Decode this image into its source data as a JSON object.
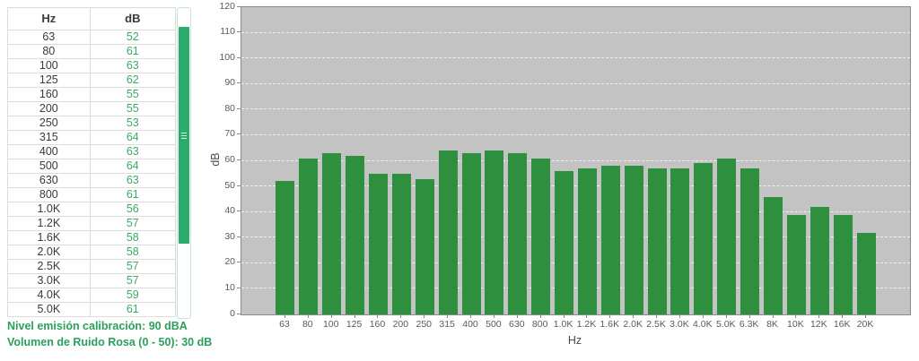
{
  "table": {
    "columns": [
      "Hz",
      "dB"
    ],
    "rows": [
      [
        "63",
        52
      ],
      [
        "80",
        61
      ],
      [
        "100",
        63
      ],
      [
        "125",
        62
      ],
      [
        "160",
        55
      ],
      [
        "200",
        55
      ],
      [
        "250",
        53
      ],
      [
        "315",
        64
      ],
      [
        "400",
        63
      ],
      [
        "500",
        64
      ],
      [
        "630",
        63
      ],
      [
        "800",
        61
      ],
      [
        "1.0K",
        56
      ],
      [
        "1.2K",
        57
      ],
      [
        "1.6K",
        58
      ],
      [
        "2.0K",
        58
      ],
      [
        "2.5K",
        57
      ],
      [
        "3.0K",
        57
      ],
      [
        "4.0K",
        59
      ],
      [
        "5.0K",
        61
      ]
    ]
  },
  "notes": {
    "calibration": "Nivel emisión calibración: 90 dBA",
    "pink_noise": "Volumen de Ruido Rosa (0 - 50): 30 dB"
  },
  "chart_data": {
    "type": "bar",
    "categories": [
      "63",
      "80",
      "100",
      "125",
      "160",
      "200",
      "250",
      "315",
      "400",
      "500",
      "630",
      "800",
      "1.0K",
      "1.2K",
      "1.6K",
      "2.0K",
      "2.5K",
      "3.0K",
      "4.0K",
      "5.0K",
      "6.3K",
      "8K",
      "10K",
      "12K",
      "16K",
      "20K"
    ],
    "values": [
      52,
      61,
      63,
      62,
      55,
      55,
      53,
      64,
      63,
      64,
      63,
      61,
      56,
      57,
      58,
      58,
      57,
      57,
      59,
      61,
      57,
      46,
      39,
      42,
      39,
      32
    ],
    "title": "",
    "xlabel": "Hz",
    "ylabel": "dB",
    "ylim": [
      0,
      120
    ],
    "ytick_step": 10,
    "grid": "horizontal-dashed",
    "legend": "none"
  },
  "colors": {
    "bar_green": "#2e8f3f",
    "plot_background": "#c3c3c3",
    "plot_border": "#8a8a8a",
    "grid_white": "rgba(255,255,255,0.75)",
    "table_value_green": "#3caa64",
    "notes_green": "#2aa05a",
    "scrollbar_green": "#2aad6b",
    "axis_text": "#5a5a5a"
  }
}
